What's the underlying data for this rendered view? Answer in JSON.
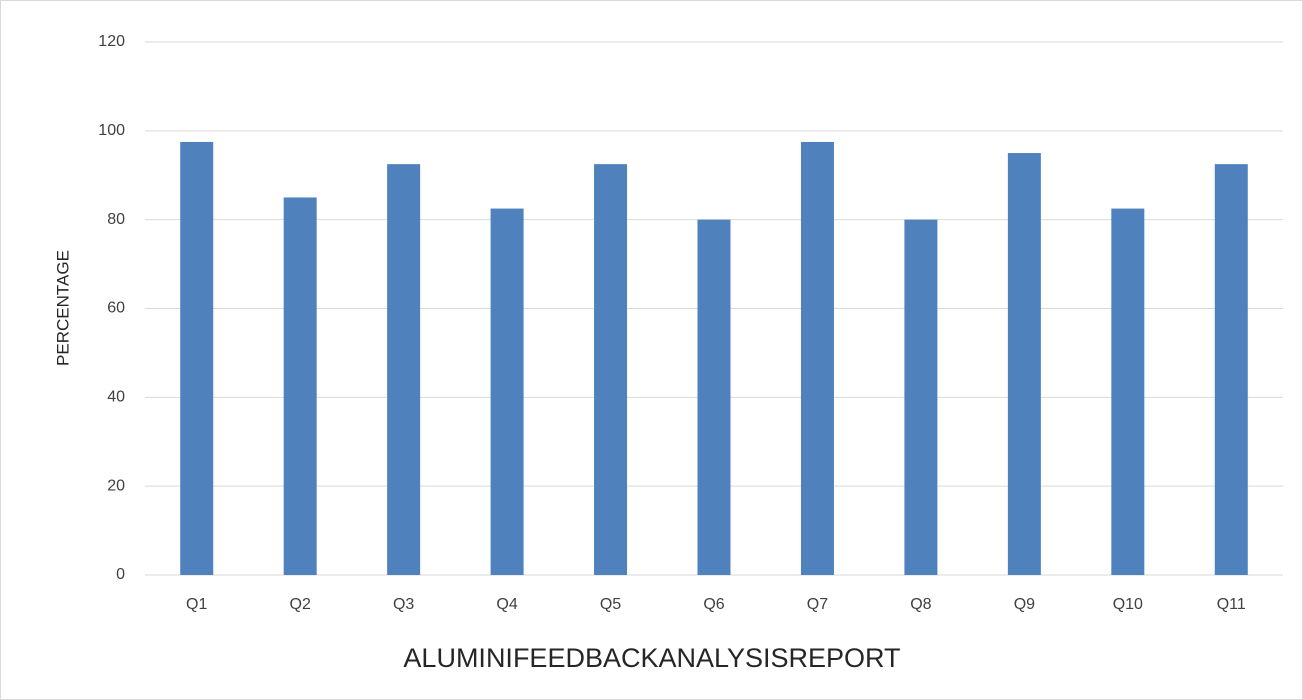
{
  "chart_data": {
    "type": "bar",
    "x_label": "ALUMINIFEEDBACKANALYSISREPORT",
    "y_label": "PERCENTAGE",
    "categories": [
      "Q1",
      "Q2",
      "Q3",
      "Q4",
      "Q5",
      "Q6",
      "Q7",
      "Q8",
      "Q9",
      "Q10",
      "Q11"
    ],
    "values": [
      97.5,
      85,
      92.5,
      82.5,
      92.5,
      80,
      97.5,
      80,
      95,
      82.5,
      92.5
    ],
    "color": "#4f81bd",
    "ylim": [
      0,
      120
    ],
    "yticks": [
      0,
      20,
      40,
      60,
      80,
      100,
      120
    ],
    "grid": true
  }
}
